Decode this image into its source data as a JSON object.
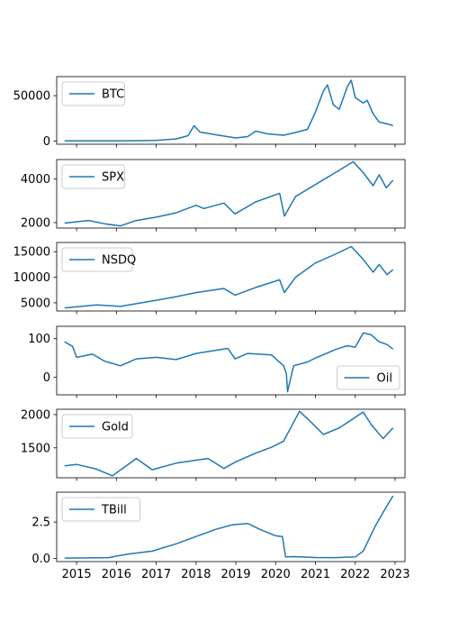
{
  "colors": {
    "line": "#1f77b4",
    "axes": "#000000",
    "legend_border": "#cccccc"
  },
  "shared_x_ticks": [
    "2015",
    "2016",
    "2017",
    "2018",
    "2019",
    "2020",
    "2021",
    "2022",
    "2023"
  ],
  "chart_data": [
    {
      "type": "line",
      "legend": "BTC",
      "legend_loc": "upper left",
      "ylim": [
        -3400,
        71000
      ],
      "yticks": [
        0,
        50000
      ],
      "ytick_labels": [
        "0",
        "50000"
      ],
      "x": [
        2014.7,
        2015.5,
        2016.5,
        2017.0,
        2017.5,
        2017.8,
        2017.95,
        2018.1,
        2018.5,
        2019.0,
        2019.3,
        2019.5,
        2019.8,
        2020.2,
        2020.5,
        2020.8,
        2021.0,
        2021.2,
        2021.3,
        2021.45,
        2021.6,
        2021.8,
        2021.9,
        2022.0,
        2022.2,
        2022.3,
        2022.45,
        2022.6,
        2022.8,
        2022.95
      ],
      "values": [
        400,
        250,
        450,
        900,
        2500,
        6000,
        17000,
        10000,
        7000,
        3500,
        5000,
        11000,
        8000,
        6500,
        9500,
        13000,
        32000,
        55000,
        62000,
        40000,
        35000,
        60000,
        67000,
        48000,
        42000,
        45000,
        30000,
        21000,
        19000,
        17000
      ]
    },
    {
      "type": "line",
      "legend": "SPX",
      "legend_loc": "upper left",
      "ylim": [
        1750,
        4900
      ],
      "yticks": [
        2000,
        4000
      ],
      "ytick_labels": [
        "2000",
        "4000"
      ],
      "x": [
        2014.7,
        2015.3,
        2015.7,
        2016.1,
        2016.5,
        2017.0,
        2017.5,
        2018.0,
        2018.2,
        2018.7,
        2018.98,
        2019.5,
        2020.1,
        2020.22,
        2020.5,
        2021.0,
        2021.5,
        2021.95,
        2022.2,
        2022.45,
        2022.6,
        2022.78,
        2022.95
      ],
      "values": [
        1980,
        2100,
        1950,
        1850,
        2100,
        2250,
        2450,
        2800,
        2650,
        2900,
        2400,
        2950,
        3350,
        2300,
        3200,
        3750,
        4300,
        4800,
        4300,
        3700,
        4200,
        3600,
        3950
      ]
    },
    {
      "type": "line",
      "legend": "NSDQ",
      "legend_loc": "upper left",
      "ylim": [
        3400,
        16800
      ],
      "yticks": [
        5000,
        10000,
        15000
      ],
      "ytick_labels": [
        "5000",
        "10000",
        "15000"
      ],
      "x": [
        2014.7,
        2015.5,
        2016.1,
        2017.0,
        2017.5,
        2018.0,
        2018.7,
        2018.98,
        2019.5,
        2020.1,
        2020.22,
        2020.5,
        2021.0,
        2021.5,
        2021.9,
        2022.2,
        2022.45,
        2022.6,
        2022.8,
        2022.95
      ],
      "values": [
        4000,
        4600,
        4300,
        5500,
        6200,
        7000,
        7800,
        6500,
        8000,
        9500,
        7000,
        10000,
        12800,
        14500,
        16000,
        13500,
        11000,
        12500,
        10500,
        11500
      ]
    },
    {
      "type": "line",
      "legend": "Oil",
      "legend_loc": "lower right",
      "ylim": [
        -45,
        132
      ],
      "yticks": [
        0,
        100
      ],
      "ytick_labels": [
        "0",
        "100"
      ],
      "x": [
        2014.7,
        2014.9,
        2015.0,
        2015.4,
        2015.7,
        2016.1,
        2016.5,
        2017.0,
        2017.5,
        2018.0,
        2018.8,
        2018.98,
        2019.3,
        2019.9,
        2020.2,
        2020.27,
        2020.3,
        2020.45,
        2020.8,
        2021.0,
        2021.5,
        2021.8,
        2022.0,
        2022.2,
        2022.4,
        2022.6,
        2022.8,
        2022.95
      ],
      "values": [
        92,
        80,
        52,
        60,
        42,
        30,
        48,
        52,
        46,
        62,
        75,
        48,
        62,
        58,
        30,
        10,
        -37,
        30,
        40,
        50,
        72,
        82,
        78,
        115,
        110,
        92,
        85,
        73
      ]
    },
    {
      "type": "line",
      "legend": "Gold",
      "legend_loc": "upper left",
      "ylim": [
        1050,
        2080
      ],
      "yticks": [
        1500,
        2000
      ],
      "ytick_labels": [
        "1500",
        "2000"
      ],
      "x": [
        2014.7,
        2015.0,
        2015.5,
        2015.9,
        2016.5,
        2016.9,
        2017.5,
        2018.3,
        2018.7,
        2019.0,
        2019.5,
        2019.9,
        2020.2,
        2020.6,
        2020.9,
        2021.2,
        2021.6,
        2022.2,
        2022.4,
        2022.7,
        2022.95
      ],
      "values": [
        1230,
        1250,
        1180,
        1080,
        1340,
        1170,
        1270,
        1340,
        1190,
        1290,
        1420,
        1510,
        1600,
        2050,
        1880,
        1700,
        1800,
        2040,
        1850,
        1640,
        1800
      ]
    },
    {
      "type": "line",
      "legend": "TBill",
      "legend_loc": "upper left",
      "ylim": [
        -0.22,
        4.55
      ],
      "yticks": [
        0.0,
        2.5
      ],
      "ytick_labels": [
        "0.0",
        "2.5"
      ],
      "x": [
        2014.7,
        2015.8,
        2016.3,
        2016.9,
        2017.5,
        2018.0,
        2018.5,
        2018.9,
        2019.3,
        2019.6,
        2020.0,
        2020.17,
        2020.25,
        2020.5,
        2021.0,
        2021.5,
        2022.0,
        2022.2,
        2022.5,
        2022.75,
        2022.95
      ],
      "values": [
        0.02,
        0.05,
        0.3,
        0.5,
        1.0,
        1.5,
        2.0,
        2.3,
        2.4,
        2.0,
        1.55,
        1.5,
        0.1,
        0.12,
        0.06,
        0.05,
        0.1,
        0.5,
        2.2,
        3.4,
        4.3
      ]
    }
  ]
}
